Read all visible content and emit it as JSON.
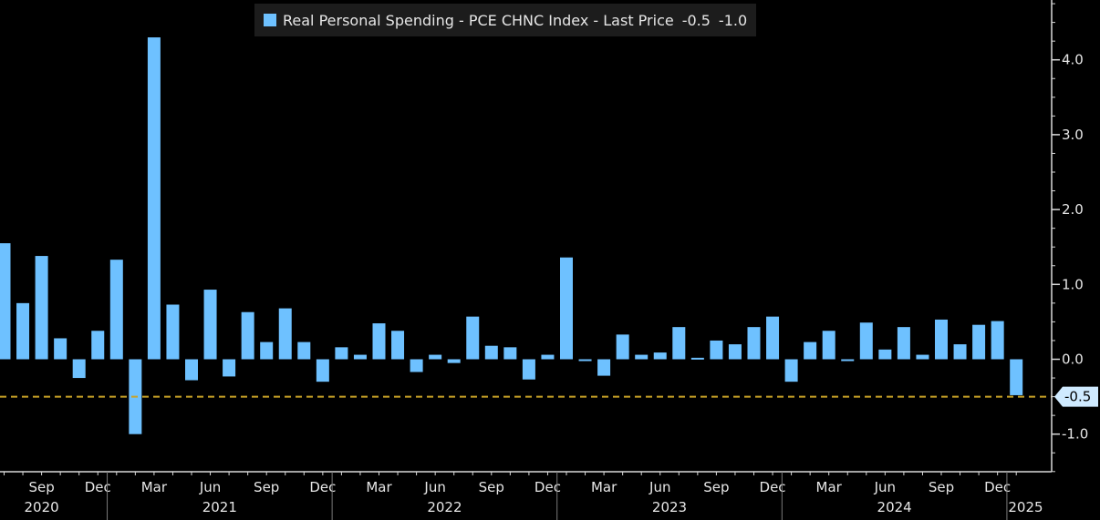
{
  "chart_data": {
    "type": "bar",
    "title": "Real Personal Spending - PCE CHNC Index",
    "series": [
      {
        "name": "Real Personal Spending - PCE CHNC Index",
        "color": "#6ec1ff"
      }
    ],
    "legend": {
      "label": "Real Personal Spending - PCE CHNC Index - Last Price",
      "last_price": "-0.5",
      "extra_value": "-1.0"
    },
    "ylim": [
      -1.5,
      4.75
    ],
    "yticks": [
      4.0,
      3.0,
      2.0,
      1.0,
      0.0,
      -1.0
    ],
    "ytick_labels": [
      "4.0",
      "3.0",
      "2.0",
      "1.0",
      "0.0",
      "-1.0"
    ],
    "last_value": -0.5,
    "last_value_label": "-0.5",
    "reference_line": -0.5,
    "x": [
      "2020-07",
      "2020-08",
      "2020-09",
      "2020-10",
      "2020-11",
      "2020-12",
      "2021-01",
      "2021-02",
      "2021-03",
      "2021-04",
      "2021-05",
      "2021-06",
      "2021-07",
      "2021-08",
      "2021-09",
      "2021-10",
      "2021-11",
      "2021-12",
      "2022-01",
      "2022-02",
      "2022-03",
      "2022-04",
      "2022-05",
      "2022-06",
      "2022-07",
      "2022-08",
      "2022-09",
      "2022-10",
      "2022-11",
      "2022-12",
      "2023-01",
      "2023-02",
      "2023-03",
      "2023-04",
      "2023-05",
      "2023-06",
      "2023-07",
      "2023-08",
      "2023-09",
      "2023-10",
      "2023-11",
      "2023-12",
      "2024-01",
      "2024-02",
      "2024-03",
      "2024-04",
      "2024-05",
      "2024-06",
      "2024-07",
      "2024-08",
      "2024-09",
      "2024-10",
      "2024-11",
      "2024-12",
      "2025-01"
    ],
    "values": [
      1.55,
      0.75,
      1.38,
      0.28,
      -0.25,
      0.38,
      1.33,
      -1.0,
      4.3,
      0.73,
      -0.28,
      0.93,
      -0.23,
      0.63,
      0.23,
      0.68,
      0.23,
      -0.3,
      0.16,
      0.06,
      0.48,
      0.38,
      -0.17,
      0.06,
      -0.05,
      0.57,
      0.18,
      0.16,
      -0.27,
      0.06,
      1.36,
      -0.02,
      -0.22,
      0.33,
      0.06,
      0.09,
      0.43,
      0.02,
      0.25,
      0.2,
      0.43,
      0.57,
      -0.3,
      0.23,
      0.38,
      -0.02,
      0.49,
      0.13,
      0.43,
      0.06,
      0.53,
      0.2,
      0.46,
      0.51,
      -0.48
    ],
    "month_ticks": [
      {
        "label": "Sep",
        "index": 2
      },
      {
        "label": "Dec",
        "index": 5
      },
      {
        "label": "Mar",
        "index": 8
      },
      {
        "label": "Jun",
        "index": 11
      },
      {
        "label": "Sep",
        "index": 14
      },
      {
        "label": "Dec",
        "index": 17
      },
      {
        "label": "Mar",
        "index": 20
      },
      {
        "label": "Jun",
        "index": 23
      },
      {
        "label": "Sep",
        "index": 26
      },
      {
        "label": "Dec",
        "index": 29
      },
      {
        "label": "Mar",
        "index": 32
      },
      {
        "label": "Jun",
        "index": 35
      },
      {
        "label": "Sep",
        "index": 38
      },
      {
        "label": "Dec",
        "index": 41
      },
      {
        "label": "Mar",
        "index": 44
      },
      {
        "label": "Jun",
        "index": 47
      },
      {
        "label": "Sep",
        "index": 50
      },
      {
        "label": "Dec",
        "index": 53
      }
    ],
    "year_labels": [
      {
        "label": "2020",
        "center_index": 2
      },
      {
        "label": "2021",
        "center_index": 11.5
      },
      {
        "label": "2022",
        "center_index": 23.5
      },
      {
        "label": "2023",
        "center_index": 35.5
      },
      {
        "label": "2024",
        "center_index": 47.5
      },
      {
        "label": "2025",
        "center_index": 54.5
      }
    ],
    "year_dividers": [
      5.5,
      17.5,
      29.5,
      41.5,
      53.5
    ]
  },
  "colors": {
    "background": "#000000",
    "bar": "#6ec1ff",
    "reference_line": "#c9a227",
    "axis": "#d9d9d9",
    "tick_text": "#e6e6e6"
  }
}
